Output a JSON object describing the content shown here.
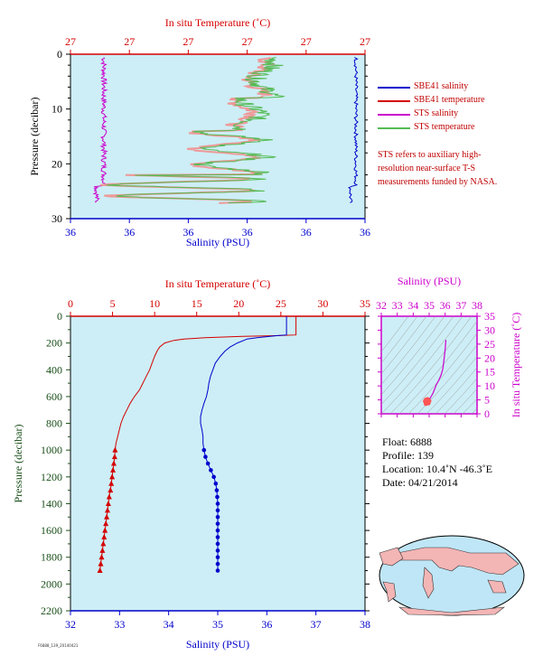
{
  "colors": {
    "panel_bg": "#cdeef6",
    "red": "#d40000",
    "blue": "#0000cc",
    "magenta": "#cc00cc",
    "green": "#55bb55",
    "pink": "#ee9999",
    "ts_frame": "#cc00cc",
    "depth_axis": "#1a4f1a"
  },
  "chart_data": [
    {
      "id": "top",
      "type": "line",
      "title": "",
      "top_axis_label": "In situ Temperature (˚C)",
      "top_ticks": [
        "27",
        "27",
        "27",
        "27",
        "27",
        "27"
      ],
      "bottom_axis_label": "Salinity (PSU)",
      "bottom_ticks": [
        "36",
        "36",
        "36",
        "36",
        "36",
        "36"
      ],
      "ylabel": "Pressure (decibar)",
      "yticks": [
        "0",
        "10",
        "20",
        "30"
      ],
      "ylim": [
        0,
        30
      ],
      "series": [
        {
          "name": "SBE41 salinity",
          "color": "#0000cc"
        },
        {
          "name": "SBE41 temperature",
          "color": "#d40000"
        },
        {
          "name": "STS salinity",
          "color": "#cc00cc"
        },
        {
          "name": "STS temperature",
          "color": "#55bb55"
        }
      ],
      "note": "STS refers to auxiliary high-resolution near-surface T-S measurements funded by NASA."
    },
    {
      "id": "main",
      "type": "line",
      "title": "",
      "top_axis_label": "In situ Temperature (˚C)",
      "top_ticks": [
        "0",
        "5",
        "10",
        "15",
        "20",
        "25",
        "30",
        "35"
      ],
      "xlim_temperature": [
        0,
        35
      ],
      "bottom_axis_label": "Salinity (PSU)",
      "bottom_ticks": [
        "32",
        "33",
        "34",
        "35",
        "36",
        "37",
        "38"
      ],
      "xlim_salinity": [
        32,
        38
      ],
      "ylabel": "Pressure (decibar)",
      "yticks": [
        "0",
        "200",
        "400",
        "600",
        "800",
        "1000",
        "1200",
        "1400",
        "1600",
        "1800",
        "2000",
        "2200"
      ],
      "ylim": [
        0,
        2200
      ],
      "temperature_profile": {
        "p": [
          0,
          140,
          145,
          150,
          160,
          170,
          180,
          200,
          230,
          260,
          300,
          350,
          400,
          450,
          500,
          550,
          600,
          650,
          700,
          750,
          800,
          850,
          900,
          950,
          1000
        ],
        "t": [
          26.8,
          26.8,
          24.5,
          20.5,
          16.0,
          13.5,
          12.3,
          11.2,
          10.6,
          10.3,
          10.0,
          9.7,
          9.4,
          9.0,
          8.6,
          8.2,
          7.6,
          7.1,
          6.7,
          6.3,
          6.0,
          5.8,
          5.6,
          5.4,
          5.3
        ]
      },
      "temperature_markers": {
        "p": [
          1000,
          1050,
          1100,
          1150,
          1200,
          1250,
          1300,
          1350,
          1400,
          1450,
          1500,
          1550,
          1600,
          1650,
          1700,
          1750,
          1800,
          1850,
          1900
        ],
        "t": [
          5.3,
          5.25,
          5.15,
          5.05,
          4.95,
          4.85,
          4.75,
          4.6,
          4.5,
          4.4,
          4.3,
          4.2,
          4.1,
          4.0,
          3.9,
          3.8,
          3.7,
          3.6,
          3.5
        ]
      },
      "salinity_profile": {
        "p": [
          0,
          140,
          145,
          160,
          170,
          200,
          230,
          260,
          300,
          350,
          400,
          450,
          500,
          550,
          600,
          650,
          700,
          750,
          800,
          850,
          900,
          950,
          1000
        ],
        "s": [
          36.4,
          36.4,
          36.2,
          35.8,
          35.6,
          35.4,
          35.25,
          35.15,
          35.05,
          34.95,
          34.9,
          34.85,
          34.82,
          34.8,
          34.77,
          34.72,
          34.68,
          34.65,
          34.65,
          34.68,
          34.7,
          34.7,
          34.72
        ]
      },
      "salinity_markers": {
        "p": [
          1000,
          1050,
          1100,
          1150,
          1200,
          1250,
          1300,
          1350,
          1400,
          1450,
          1500,
          1550,
          1600,
          1650,
          1700,
          1750,
          1800,
          1850,
          1900
        ],
        "s": [
          34.72,
          34.75,
          34.8,
          34.86,
          34.92,
          34.96,
          34.98,
          34.99,
          35.0,
          35.0,
          35.0,
          35.0,
          35.0,
          35.0,
          35.0,
          35.0,
          35.0,
          35.0,
          35.0
        ]
      }
    },
    {
      "id": "ts",
      "type": "scatter",
      "title": "",
      "top_axis_label": "Salinity (PSU)",
      "xticks": [
        "32",
        "33",
        "34",
        "35",
        "36",
        "37",
        "38"
      ],
      "xlim": [
        32,
        38
      ],
      "right_axis_label": "In situ Temperature (˚C)",
      "yticks": [
        "0",
        "5",
        "10",
        "15",
        "20",
        "25",
        "30",
        "35"
      ],
      "ylim": [
        0,
        35
      ],
      "curve": {
        "s": [
          34.9,
          35.0,
          35.1,
          35.25,
          35.35,
          35.45,
          35.6,
          35.75,
          35.85,
          35.9,
          35.95,
          36.0,
          36.05
        ],
        "t": [
          4.0,
          5.0,
          6.0,
          7.5,
          9.0,
          10.5,
          12.0,
          14.0,
          16.0,
          18.0,
          20.5,
          23.0,
          26.5
        ]
      },
      "cluster": {
        "s": [
          34.75,
          34.8,
          34.85,
          34.9,
          34.95,
          35.0,
          34.8,
          34.9
        ],
        "t": [
          4.5,
          5.0,
          4.0,
          5.2,
          3.8,
          4.6,
          3.6,
          4.2
        ]
      }
    }
  ],
  "info": {
    "float": "Float:  6888",
    "profile": "Profile:  139",
    "location": "Location:  10.4˚N  -46.3˚E",
    "date": "Date:  04/21/2014"
  },
  "tiny_id": "F6888_139_20140421"
}
